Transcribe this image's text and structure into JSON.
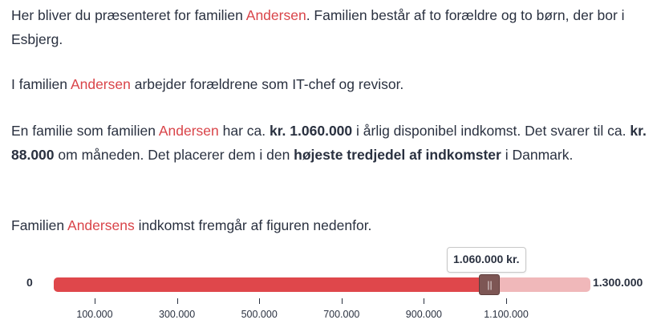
{
  "family_name": "Andersen",
  "p1": {
    "t1": "Her bliver du præsenteret for familien ",
    "name": "Andersen",
    "t2": ". Familien består af to forældre og to børn, der bor i Esbjerg."
  },
  "p2": {
    "t1": "I familien ",
    "name": "Andersen",
    "t2": " arbejder forældrene som IT-chef og revisor."
  },
  "p3": {
    "t1": "En familie som familien ",
    "name": "Andersen",
    "t2": " har ca. ",
    "b1": "kr. 1.060.000",
    "t3": " i årlig disponibel indkomst. Det svarer til ca. ",
    "b2": "kr. 88.000",
    "t4": " om måneden. Det placerer dem i den ",
    "b3": "højeste tredjedel af indkomster",
    "t5": " i Danmark."
  },
  "p4": {
    "name": "Andersens",
    "t1": " indkomst fremgår af figuren nedenfor.",
    "t0": "Familien "
  },
  "slider": {
    "min": 0,
    "max": 1300000,
    "value": 1060000,
    "min_label": "0",
    "max_label": "1.300.000",
    "tooltip": "1.060.000 kr.",
    "thumb_glyph": "||",
    "ticks": [
      {
        "value": 100000,
        "label": "100.000"
      },
      {
        "value": 300000,
        "label": "300.000"
      },
      {
        "value": 500000,
        "label": "500.000"
      },
      {
        "value": 700000,
        "label": "700.000"
      },
      {
        "value": 900000,
        "label": "900.000"
      },
      {
        "value": 1100000,
        "label": "1.100.000"
      }
    ],
    "colors": {
      "fill": "#df474b",
      "track": "#f0b8ba",
      "thumb": "#7d5654"
    }
  },
  "colors": {
    "highlight": "#d94449",
    "text": "#2a3140"
  }
}
